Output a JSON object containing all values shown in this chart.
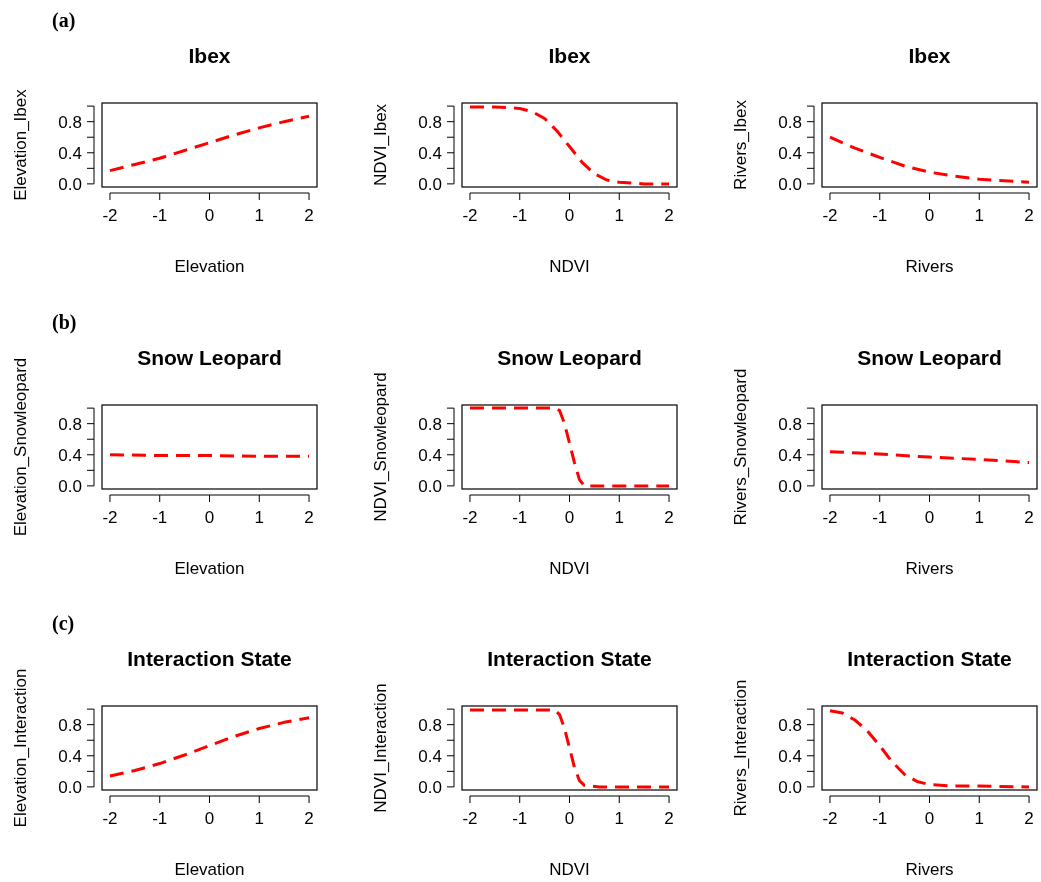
{
  "chart_data": [
    {
      "type": "line",
      "title": "Ibex",
      "xlabel": "Elevation",
      "ylabel": "Elevation_Ibex",
      "annotations": [
        "(a)"
      ],
      "xlim": [
        -2.16,
        2.16
      ],
      "ylim": [
        -0.04,
        1.04
      ],
      "xticks": [
        -2,
        -1,
        0,
        1,
        2
      ],
      "yticks": [
        {
          "value": 0,
          "label": "0.0"
        },
        {
          "value": 0.2,
          "label": null
        },
        {
          "value": 0.4,
          "label": "0.4"
        },
        {
          "value": 0.6,
          "label": null
        },
        {
          "value": 0.8,
          "label": "0.8"
        },
        {
          "value": 1,
          "label": null
        }
      ],
      "line_style": "dashed",
      "x": [
        -2,
        -1.5,
        -1,
        -0.5,
        0,
        0.5,
        1,
        1.5,
        2
      ],
      "series": [
        {
          "color": "#ff0000",
          "values": [
            0.17,
            0.25,
            0.33,
            0.43,
            0.53,
            0.63,
            0.72,
            0.8,
            0.87
          ]
        }
      ]
    },
    {
      "type": "line",
      "title": "Ibex",
      "xlabel": "NDVI",
      "ylabel": "NDVI_Ibex",
      "xlim": [
        -2.16,
        2.16
      ],
      "ylim": [
        -0.04,
        1.04
      ],
      "xticks": [
        -2,
        -1,
        0,
        1,
        2
      ],
      "yticks": [
        {
          "value": 0,
          "label": "0.0"
        },
        {
          "value": 0.2,
          "label": null
        },
        {
          "value": 0.4,
          "label": "0.4"
        },
        {
          "value": 0.6,
          "label": null
        },
        {
          "value": 0.8,
          "label": "0.8"
        },
        {
          "value": 1,
          "label": null
        }
      ],
      "line_style": "dashed",
      "x": [
        -2,
        -1.5,
        -1,
        -0.75,
        -0.5,
        -0.25,
        0,
        0.25,
        0.5,
        0.75,
        1,
        1.5,
        2
      ],
      "series": [
        {
          "color": "#ff0000",
          "values": [
            0.99,
            0.99,
            0.97,
            0.93,
            0.84,
            0.68,
            0.48,
            0.28,
            0.13,
            0.05,
            0.02,
            0,
            0
          ]
        }
      ]
    },
    {
      "type": "line",
      "title": "Ibex",
      "xlabel": "Rivers",
      "ylabel": "Rivers_Ibex",
      "xlim": [
        -2.16,
        2.16
      ],
      "ylim": [
        -0.04,
        1.04
      ],
      "xticks": [
        -2,
        -1,
        0,
        1,
        2
      ],
      "yticks": [
        {
          "value": 0,
          "label": "0.0"
        },
        {
          "value": 0.2,
          "label": null
        },
        {
          "value": 0.4,
          "label": "0.4"
        },
        {
          "value": 0.6,
          "label": null
        },
        {
          "value": 0.8,
          "label": "0.8"
        },
        {
          "value": 1,
          "label": null
        }
      ],
      "line_style": "dashed",
      "x": [
        -2,
        -1.5,
        -1,
        -0.5,
        0,
        0.5,
        1,
        1.5,
        2
      ],
      "series": [
        {
          "color": "#ff0000",
          "values": [
            0.6,
            0.46,
            0.34,
            0.23,
            0.15,
            0.1,
            0.06,
            0.04,
            0.02
          ]
        }
      ]
    },
    {
      "type": "line",
      "title": "Snow Leopard",
      "xlabel": "Elevation",
      "ylabel": "Elevation_Snowleopard",
      "annotations": [
        "(b)"
      ],
      "xlim": [
        -2.16,
        2.16
      ],
      "ylim": [
        -0.04,
        1.04
      ],
      "xticks": [
        -2,
        -1,
        0,
        1,
        2
      ],
      "yticks": [
        {
          "value": 0,
          "label": "0.0"
        },
        {
          "value": 0.2,
          "label": null
        },
        {
          "value": 0.4,
          "label": "0.4"
        },
        {
          "value": 0.6,
          "label": null
        },
        {
          "value": 0.8,
          "label": "0.8"
        },
        {
          "value": 1,
          "label": null
        }
      ],
      "line_style": "dashed",
      "x": [
        -2,
        -1,
        0,
        1,
        2
      ],
      "series": [
        {
          "color": "#ff0000",
          "values": [
            0.4,
            0.39,
            0.39,
            0.38,
            0.38
          ]
        }
      ]
    },
    {
      "type": "line",
      "title": "Snow Leopard",
      "xlabel": "NDVI",
      "ylabel": "NDVI_Snowleopard",
      "xlim": [
        -2.16,
        2.16
      ],
      "ylim": [
        -0.04,
        1.04
      ],
      "xticks": [
        -2,
        -1,
        0,
        1,
        2
      ],
      "yticks": [
        {
          "value": 0,
          "label": "0.0"
        },
        {
          "value": 0.2,
          "label": null
        },
        {
          "value": 0.4,
          "label": "0.4"
        },
        {
          "value": 0.6,
          "label": null
        },
        {
          "value": 0.8,
          "label": "0.8"
        },
        {
          "value": 1,
          "label": null
        }
      ],
      "line_style": "dashed",
      "x": [
        -2,
        -1,
        -0.3,
        -0.2,
        -0.1,
        0,
        0.1,
        0.2,
        0.3,
        1,
        2
      ],
      "series": [
        {
          "color": "#ff0000",
          "values": [
            1,
            1,
            1,
            0.97,
            0.8,
            0.55,
            0.3,
            0.08,
            0,
            0,
            0
          ]
        }
      ]
    },
    {
      "type": "line",
      "title": "Snow Leopard",
      "xlabel": "Rivers",
      "ylabel": "Rivers_Snowleopard",
      "xlim": [
        -2.16,
        2.16
      ],
      "ylim": [
        -0.04,
        1.04
      ],
      "xticks": [
        -2,
        -1,
        0,
        1,
        2
      ],
      "yticks": [
        {
          "value": 0,
          "label": "0.0"
        },
        {
          "value": 0.2,
          "label": null
        },
        {
          "value": 0.4,
          "label": "0.4"
        },
        {
          "value": 0.6,
          "label": null
        },
        {
          "value": 0.8,
          "label": "0.8"
        },
        {
          "value": 1,
          "label": null
        }
      ],
      "line_style": "dashed",
      "x": [
        -2,
        -1,
        0,
        1,
        2
      ],
      "series": [
        {
          "color": "#ff0000",
          "values": [
            0.44,
            0.41,
            0.37,
            0.34,
            0.3
          ]
        }
      ]
    },
    {
      "type": "line",
      "title": "Interaction State",
      "xlabel": "Elevation",
      "ylabel": "Elevation_Interaction",
      "annotations": [
        "(c)"
      ],
      "xlim": [
        -2.16,
        2.16
      ],
      "ylim": [
        -0.04,
        1.04
      ],
      "xticks": [
        -2,
        -1,
        0,
        1,
        2
      ],
      "yticks": [
        {
          "value": 0,
          "label": "0.0"
        },
        {
          "value": 0.2,
          "label": null
        },
        {
          "value": 0.4,
          "label": "0.4"
        },
        {
          "value": 0.6,
          "label": null
        },
        {
          "value": 0.8,
          "label": "0.8"
        },
        {
          "value": 1,
          "label": null
        }
      ],
      "line_style": "dashed",
      "x": [
        -2,
        -1.5,
        -1,
        -0.5,
        0,
        0.5,
        1,
        1.5,
        2
      ],
      "series": [
        {
          "color": "#ff0000",
          "values": [
            0.14,
            0.21,
            0.3,
            0.41,
            0.53,
            0.65,
            0.75,
            0.83,
            0.89
          ]
        }
      ]
    },
    {
      "type": "line",
      "title": "Interaction State",
      "xlabel": "NDVI",
      "ylabel": "NDVI_Interaction",
      "xlim": [
        -2.16,
        2.16
      ],
      "ylim": [
        -0.04,
        1.04
      ],
      "xticks": [
        -2,
        -1,
        0,
        1,
        2
      ],
      "yticks": [
        {
          "value": 0,
          "label": "0.0"
        },
        {
          "value": 0.2,
          "label": null
        },
        {
          "value": 0.4,
          "label": "0.4"
        },
        {
          "value": 0.6,
          "label": null
        },
        {
          "value": 0.8,
          "label": "0.8"
        },
        {
          "value": 1,
          "label": null
        }
      ],
      "line_style": "dashed",
      "x": [
        -2,
        -1,
        -0.3,
        -0.2,
        -0.1,
        0,
        0.1,
        0.2,
        0.3,
        0.6,
        1,
        2
      ],
      "series": [
        {
          "color": "#ff0000",
          "values": [
            0.99,
            0.99,
            0.99,
            0.93,
            0.75,
            0.5,
            0.25,
            0.08,
            0.02,
            0,
            0,
            0
          ]
        }
      ]
    },
    {
      "type": "line",
      "title": "Interaction State",
      "xlabel": "Rivers",
      "ylabel": "Rivers_Interaction",
      "xlim": [
        -2.16,
        2.16
      ],
      "ylim": [
        -0.04,
        1.04
      ],
      "xticks": [
        -2,
        -1,
        0,
        1,
        2
      ],
      "yticks": [
        {
          "value": 0,
          "label": "0.0"
        },
        {
          "value": 0.2,
          "label": null
        },
        {
          "value": 0.4,
          "label": "0.4"
        },
        {
          "value": 0.6,
          "label": null
        },
        {
          "value": 0.8,
          "label": "0.8"
        },
        {
          "value": 1,
          "label": null
        }
      ],
      "line_style": "dashed",
      "x": [
        -2,
        -1.75,
        -1.5,
        -1.25,
        -1,
        -0.75,
        -0.5,
        -0.25,
        0,
        0.5,
        1,
        2
      ],
      "series": [
        {
          "color": "#ff0000",
          "values": [
            0.98,
            0.95,
            0.86,
            0.72,
            0.53,
            0.32,
            0.16,
            0.07,
            0.03,
            0.01,
            0.01,
            0
          ]
        }
      ]
    }
  ]
}
